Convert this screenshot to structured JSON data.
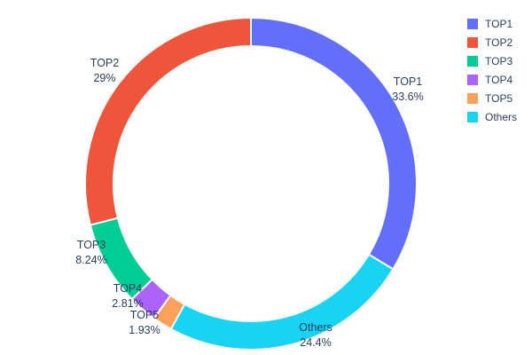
{
  "chart_data": {
    "type": "pie",
    "title": "",
    "hole": 0.83,
    "direction": "clockwise",
    "rotation_deg": 0,
    "legend_position": "top-right",
    "labels": [
      "TOP1",
      "TOP2",
      "TOP3",
      "TOP4",
      "TOP5",
      "Others"
    ],
    "values": [
      33.6,
      29,
      8.24,
      2.81,
      1.93,
      24.4
    ],
    "percent_labels": [
      "33.6%",
      "29%",
      "8.24%",
      "2.81%",
      "1.93%",
      "24.4%"
    ],
    "colors": [
      "#636EFA",
      "#EF553B",
      "#00CC96",
      "#AB63FA",
      "#FFA15A",
      "#19D3F3"
    ],
    "draw_order": [
      0,
      5,
      4,
      3,
      2,
      1
    ],
    "text_color": "#2a3f5f",
    "background_color": "#ffffff"
  }
}
